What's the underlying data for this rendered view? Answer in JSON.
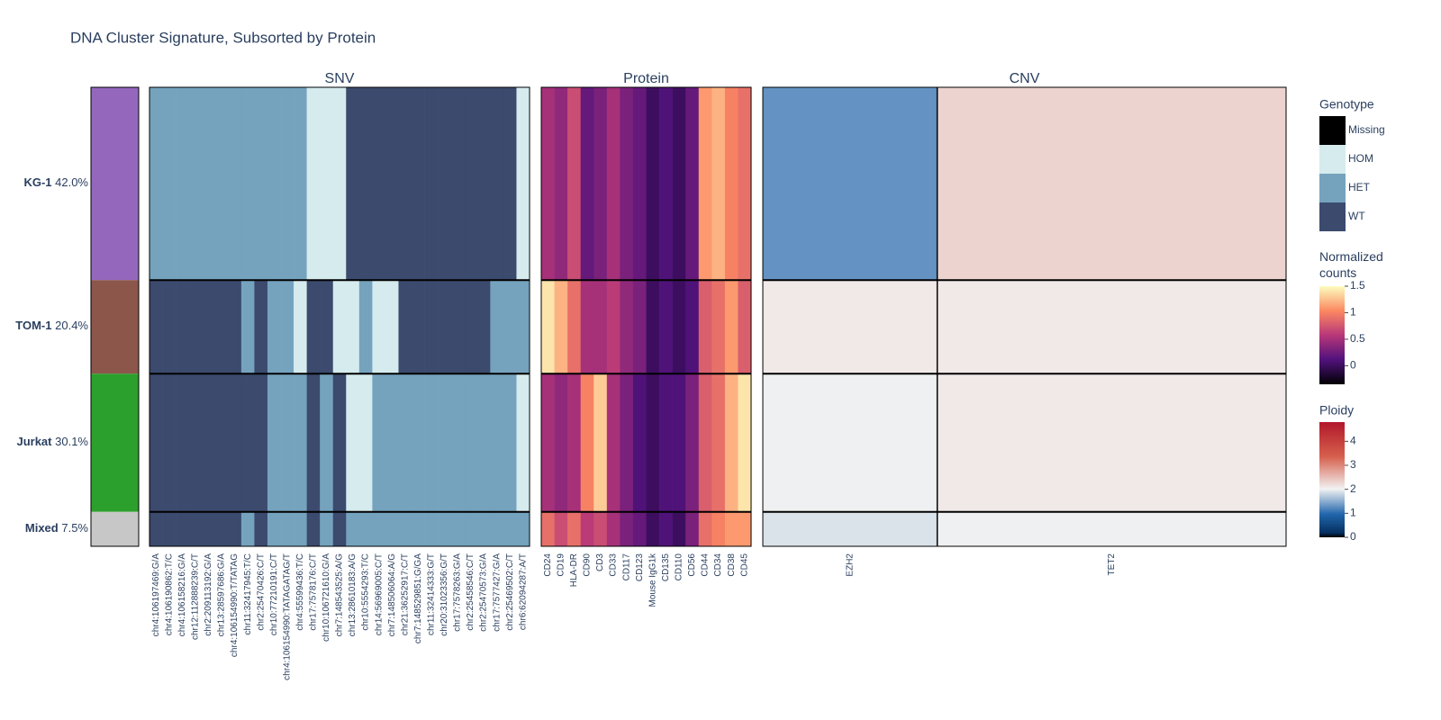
{
  "title": "DNA Cluster Signature, Subsorted by Protein",
  "clusters": {
    "names": [
      "KG-1",
      "TOM-1",
      "Jurkat",
      "Mixed"
    ],
    "values": [
      42.0,
      20.4,
      30.1,
      7.5
    ],
    "value_labels": [
      "42.0%",
      "20.4%",
      "30.1%",
      "7.5%"
    ],
    "colors": [
      "#9467bd",
      "#8c564b",
      "#2ca02c",
      "#c7c7c7"
    ]
  },
  "panels": {
    "snv": {
      "title": "SNV",
      "columns": [
        "chr4:106197469:G/A",
        "chr4:106190862:T/C",
        "chr4:106158216:G/A",
        "chr12:112888239:C/T",
        "chr2:209113192:G/A",
        "chr13:28597686:G/A",
        "chr4:106154990:T/TATAG",
        "chr11:32417945:T/C",
        "chr2:25470426:C/T",
        "chr10:77210191:C/T",
        "chr4:106154990:TATAGATAG/T",
        "chr4:55599436:T/C",
        "chr17:7578176:C/T",
        "chr10:106721610:G/A",
        "chr7:148543525:A/G",
        "chr13:28610183:A/G",
        "chr10:5554293:T/C",
        "chr14:56969005:C/T",
        "chr7:148506064:A/G",
        "chr21:36252917:C/T",
        "chr7:148529851:G/GA",
        "chr11:32414333:G/T",
        "chr20:31023356:G/T",
        "chr17:7578263:G/A",
        "chr2:25458546:C/T",
        "chr2:25470573:G/A",
        "chr17:7577427:G/A",
        "chr2:25469502:C/T",
        "chr6:62094287:A/T"
      ],
      "values": [
        [
          2,
          2,
          2,
          2,
          2,
          2,
          2,
          2,
          2,
          2,
          2,
          2,
          1,
          1,
          1,
          3,
          3,
          3,
          3,
          3,
          3,
          3,
          3,
          3,
          3,
          3,
          3,
          3,
          1
        ],
        [
          3,
          3,
          3,
          3,
          3,
          3,
          3,
          2,
          3,
          2,
          2,
          1,
          3,
          3,
          1,
          1,
          2,
          1,
          1,
          3,
          3,
          3,
          3,
          3,
          3,
          3,
          2,
          2,
          2
        ],
        [
          3,
          3,
          3,
          3,
          3,
          3,
          3,
          3,
          3,
          2,
          2,
          2,
          3,
          2,
          3,
          1,
          1,
          2,
          2,
          2,
          2,
          2,
          2,
          2,
          2,
          2,
          2,
          2,
          1
        ],
        [
          3,
          3,
          3,
          3,
          3,
          3,
          3,
          2,
          3,
          2,
          2,
          2,
          3,
          2,
          3,
          2,
          2,
          2,
          2,
          2,
          2,
          2,
          2,
          2,
          2,
          2,
          2,
          2,
          2
        ]
      ]
    },
    "protein": {
      "title": "Protein",
      "columns": [
        "CD24",
        "CD19",
        "HLA-DR",
        "CD90",
        "CD3",
        "CD33",
        "CD117",
        "CD123",
        "Mouse IgG1k",
        "CD135",
        "CD110",
        "CD56",
        "CD44",
        "CD34",
        "CD38",
        "CD45"
      ],
      "values": [
        [
          0.5,
          0.4,
          0.7,
          0.2,
          0.3,
          0.5,
          0.3,
          0.2,
          0.0,
          0.1,
          0.0,
          0.2,
          1.1,
          1.2,
          1.0,
          0.9
        ],
        [
          1.4,
          1.2,
          0.9,
          0.5,
          0.5,
          0.6,
          0.4,
          0.3,
          0.0,
          0.1,
          0.0,
          0.1,
          0.8,
          0.9,
          1.1,
          0.8
        ],
        [
          0.5,
          0.4,
          0.5,
          1.0,
          1.3,
          0.5,
          0.3,
          0.1,
          0.0,
          0.1,
          0.1,
          0.3,
          0.8,
          0.9,
          1.2,
          1.4
        ],
        [
          0.9,
          0.7,
          0.9,
          0.6,
          0.7,
          0.5,
          0.3,
          0.2,
          0.0,
          0.1,
          0.0,
          0.3,
          0.9,
          1.0,
          1.1,
          1.1
        ]
      ]
    },
    "cnv": {
      "title": "CNV",
      "columns": [
        "EZH2",
        "TET2"
      ],
      "values": [
        [
          1.3,
          2.3
        ],
        [
          2.1,
          2.1
        ],
        [
          2.0,
          2.1
        ],
        [
          1.9,
          2.0
        ]
      ]
    }
  },
  "legends": {
    "genotype": {
      "title": "Genotype",
      "labels": [
        "Missing",
        "HOM",
        "HET",
        "WT"
      ],
      "colors": [
        "#000000",
        "#d5ebee",
        "#75a3be",
        "#3b4a6d"
      ]
    },
    "counts": {
      "title": "Normalized counts",
      "lim": [
        -0.35,
        1.5
      ],
      "ticks": [
        1.5,
        1,
        0.5,
        0
      ],
      "colorscale": [
        [
          0,
          "#000004"
        ],
        [
          0.25,
          "#51127c"
        ],
        [
          0.5,
          "#b73779"
        ],
        [
          0.75,
          "#fc8961"
        ],
        [
          1,
          "#fcfdbf"
        ]
      ]
    },
    "ploidy": {
      "title": "Ploidy",
      "lim": [
        0,
        4.8
      ],
      "ticks": [
        4,
        3,
        2,
        1,
        0
      ],
      "colorscale": [
        [
          0,
          "#000000"
        ],
        [
          0.04,
          "#053061"
        ],
        [
          0.2,
          "#2166ac"
        ],
        [
          0.42,
          "#f2f2f2"
        ],
        [
          0.7,
          "#d6604d"
        ],
        [
          1,
          "#b2182b"
        ]
      ]
    }
  }
}
